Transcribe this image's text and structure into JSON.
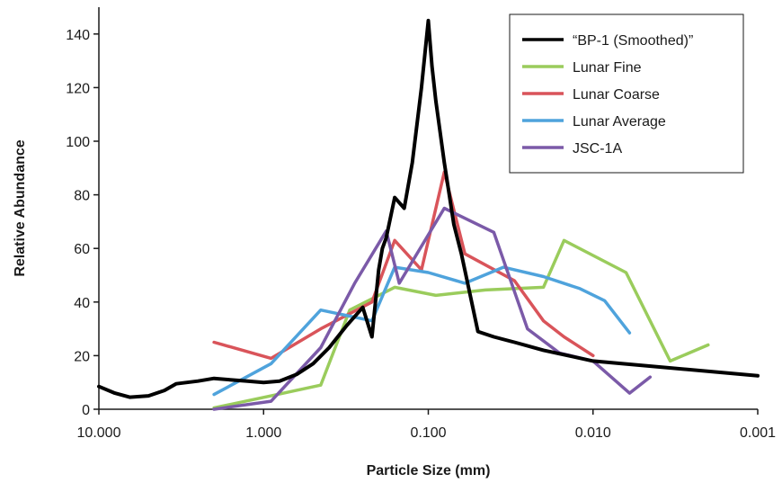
{
  "chart_data": {
    "type": "line",
    "title": "",
    "xlabel": "Particle Size (mm)",
    "ylabel": "Relative Abundance",
    "x_scale": "log",
    "x_reversed": true,
    "xlim": [
      10,
      0.001
    ],
    "ylim": [
      0,
      150
    ],
    "x_ticks": [
      10,
      1,
      0.1,
      0.01,
      0.001
    ],
    "x_tick_labels": [
      "10.000",
      "1.000",
      "0.100",
      "0.010",
      "0.001"
    ],
    "y_ticks": [
      0,
      20,
      40,
      60,
      80,
      100,
      120,
      140
    ],
    "y_tick_labels": [
      "0",
      "20",
      "40",
      "60",
      "80",
      "100",
      "120",
      "140"
    ],
    "grid": false,
    "legend_position": "top-right",
    "series": [
      {
        "name": "“BP-1 (Smoothed)”",
        "color": "#000000",
        "x": [
          10,
          8,
          6.5,
          5,
          4,
          3.4,
          2.5,
          2,
          1.6,
          1.25,
          1,
          0.8,
          0.63,
          0.5,
          0.4,
          0.315,
          0.25,
          0.22,
          0.2,
          0.19,
          0.18,
          0.16,
          0.14,
          0.125,
          0.11,
          0.1,
          0.095,
          0.09,
          0.08,
          0.07,
          0.063,
          0.055,
          0.05,
          0.04,
          0.03,
          0.02,
          0.01,
          0.001
        ],
        "values": [
          8.5,
          6,
          4.5,
          5,
          7,
          9.5,
          10.5,
          11.5,
          11,
          10.5,
          10,
          10.5,
          13,
          17,
          23,
          31,
          38,
          27,
          52,
          60,
          64,
          79,
          75,
          92,
          120,
          145,
          128,
          115,
          92,
          69,
          58,
          41,
          29,
          27,
          25,
          22,
          18,
          12.5
        ]
      },
      {
        "name": "Lunar Fine",
        "color": "#9acc5c",
        "x": [
          2,
          0.9,
          0.45,
          0.3,
          0.16,
          0.09,
          0.045,
          0.02,
          0.015,
          0.0063,
          0.0034,
          0.002
        ],
        "values": [
          0.5,
          5,
          9,
          37,
          45.5,
          42.5,
          44.5,
          45.5,
          63,
          51,
          18,
          24
        ]
      },
      {
        "name": "Lunar Coarse",
        "color": "#d9545a",
        "x": [
          2,
          0.9,
          0.45,
          0.22,
          0.16,
          0.11,
          0.08,
          0.06,
          0.03,
          0.02,
          0.015,
          0.01
        ],
        "values": [
          25,
          19,
          30,
          40,
          63,
          52,
          88.5,
          58,
          48,
          33,
          27,
          20
        ]
      },
      {
        "name": "Lunar Average",
        "color": "#4fa3dc",
        "x": [
          2,
          0.9,
          0.45,
          0.22,
          0.16,
          0.1,
          0.06,
          0.035,
          0.02,
          0.012,
          0.0085,
          0.006
        ],
        "values": [
          5.5,
          17,
          37,
          33,
          53,
          51,
          47,
          53,
          49.5,
          45,
          40.5,
          28.5
        ]
      },
      {
        "name": "JSC-1A",
        "color": "#7b5aa8",
        "x": [
          2,
          0.9,
          0.45,
          0.28,
          0.18,
          0.15,
          0.08,
          0.04,
          0.025,
          0.016,
          0.01,
          0.006,
          0.0045
        ],
        "values": [
          0,
          3,
          23,
          47,
          66.5,
          47,
          75,
          66,
          30,
          21,
          18,
          6,
          12
        ]
      }
    ]
  }
}
